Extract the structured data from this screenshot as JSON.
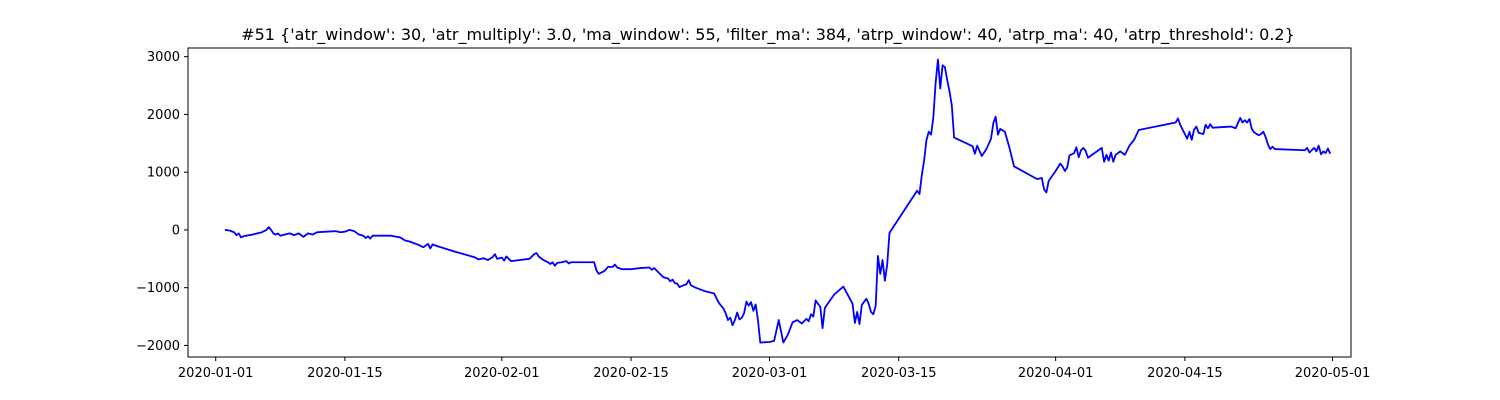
{
  "chart_data": {
    "type": "line",
    "title": "#51 {'atr_window': 30, 'atr_multiply': 3.0, 'ma_window': 55, 'filter_ma': 384, 'atrp_window': 40, 'atrp_ma': 40, 'atrp_threshold': 0.2}",
    "xlabel": "",
    "ylabel": "",
    "x_is_date": true,
    "xlim": [
      "2019-12-29",
      "2020-05-03"
    ],
    "ylim": [
      -2200,
      3150
    ],
    "x_ticks": [
      "2020-01-01",
      "2020-01-15",
      "2020-02-01",
      "2020-02-15",
      "2020-03-01",
      "2020-03-15",
      "2020-04-01",
      "2020-04-15",
      "2020-05-01"
    ],
    "y_ticks": [
      -2000,
      -1000,
      0,
      1000,
      2000,
      3000
    ],
    "grid": false,
    "series": [
      {
        "color": "#0000ff",
        "points": [
          [
            "2020-01-02",
            0
          ],
          [
            "2020-01-02 12:00",
            -10
          ],
          [
            "2020-01-03",
            -40
          ],
          [
            "2020-01-03 06:00",
            -90
          ],
          [
            "2020-01-03 12:00",
            -60
          ],
          [
            "2020-01-03 18:00",
            -130
          ],
          [
            "2020-01-04",
            -110
          ],
          [
            "2020-01-05",
            -80
          ],
          [
            "2020-01-06",
            -40
          ],
          [
            "2020-01-06 12:00",
            0
          ],
          [
            "2020-01-06 18:00",
            50
          ],
          [
            "2020-01-07",
            0
          ],
          [
            "2020-01-07 06:00",
            -60
          ],
          [
            "2020-01-07 12:00",
            -80
          ],
          [
            "2020-01-07 18:00",
            -60
          ],
          [
            "2020-01-08",
            -100
          ],
          [
            "2020-01-08 12:00",
            -80
          ],
          [
            "2020-01-09",
            -60
          ],
          [
            "2020-01-09 12:00",
            -90
          ],
          [
            "2020-01-10",
            -60
          ],
          [
            "2020-01-10 12:00",
            -120
          ],
          [
            "2020-01-11",
            -60
          ],
          [
            "2020-01-11 12:00",
            -80
          ],
          [
            "2020-01-12",
            -40
          ],
          [
            "2020-01-13",
            -30
          ],
          [
            "2020-01-14",
            -20
          ],
          [
            "2020-01-14 12:00",
            -40
          ],
          [
            "2020-01-15",
            -30
          ],
          [
            "2020-01-15 12:00",
            0
          ],
          [
            "2020-01-16",
            -20
          ],
          [
            "2020-01-16 12:00",
            -80
          ],
          [
            "2020-01-17",
            -100
          ],
          [
            "2020-01-17 06:00",
            -140
          ],
          [
            "2020-01-17 12:00",
            -110
          ],
          [
            "2020-01-17 18:00",
            -150
          ],
          [
            "2020-01-18",
            -100
          ],
          [
            "2020-01-20",
            -100
          ],
          [
            "2020-01-21",
            -130
          ],
          [
            "2020-01-21 12:00",
            -180
          ],
          [
            "2020-01-22",
            -200
          ],
          [
            "2020-01-22 12:00",
            -230
          ],
          [
            "2020-01-23",
            -260
          ],
          [
            "2020-01-23 12:00",
            -300
          ],
          [
            "2020-01-24",
            -240
          ],
          [
            "2020-01-24 06:00",
            -320
          ],
          [
            "2020-01-24 12:00",
            -250
          ],
          [
            "2020-01-25",
            -280
          ],
          [
            "2020-01-27",
            -380
          ],
          [
            "2020-01-29",
            -470
          ],
          [
            "2020-01-29 12:00",
            -510
          ],
          [
            "2020-01-30",
            -490
          ],
          [
            "2020-01-30 12:00",
            -520
          ],
          [
            "2020-01-31",
            -470
          ],
          [
            "2020-01-31 06:00",
            -420
          ],
          [
            "2020-01-31 12:00",
            -500
          ],
          [
            "2020-02-01",
            -480
          ],
          [
            "2020-02-01 06:00",
            -530
          ],
          [
            "2020-02-01 12:00",
            -460
          ],
          [
            "2020-02-02",
            -540
          ],
          [
            "2020-02-04",
            -500
          ],
          [
            "2020-02-04 12:00",
            -420
          ],
          [
            "2020-02-04 18:00",
            -400
          ],
          [
            "2020-02-05",
            -460
          ],
          [
            "2020-02-05 06:00",
            -490
          ],
          [
            "2020-02-05 12:00",
            -520
          ],
          [
            "2020-02-06",
            -560
          ],
          [
            "2020-02-06 06:00",
            -590
          ],
          [
            "2020-02-06 12:00",
            -560
          ],
          [
            "2020-02-06 18:00",
            -620
          ],
          [
            "2020-02-07",
            -570
          ],
          [
            "2020-02-07 12:00",
            -560
          ],
          [
            "2020-02-08",
            -540
          ],
          [
            "2020-02-08 06:00",
            -580
          ],
          [
            "2020-02-08 12:00",
            -560
          ],
          [
            "2020-02-11",
            -560
          ],
          [
            "2020-02-11 06:00",
            -700
          ],
          [
            "2020-02-11 12:00",
            -760
          ],
          [
            "2020-02-12",
            -720
          ],
          [
            "2020-02-12 06:00",
            -690
          ],
          [
            "2020-02-12 12:00",
            -640
          ],
          [
            "2020-02-13",
            -640
          ],
          [
            "2020-02-13 06:00",
            -600
          ],
          [
            "2020-02-13 12:00",
            -650
          ],
          [
            "2020-02-14",
            -680
          ],
          [
            "2020-02-15",
            -680
          ],
          [
            "2020-02-16",
            -660
          ],
          [
            "2020-02-17",
            -650
          ],
          [
            "2020-02-17 06:00",
            -690
          ],
          [
            "2020-02-17 12:00",
            -660
          ],
          [
            "2020-02-18",
            -740
          ],
          [
            "2020-02-18 12:00",
            -820
          ],
          [
            "2020-02-19",
            -840
          ],
          [
            "2020-02-19 06:00",
            -890
          ],
          [
            "2020-02-19 12:00",
            -860
          ],
          [
            "2020-02-19 18:00",
            -920
          ],
          [
            "2020-02-20",
            -930
          ],
          [
            "2020-02-20 06:00",
            -990
          ],
          [
            "2020-02-20 12:00",
            -970
          ],
          [
            "2020-02-21",
            -940
          ],
          [
            "2020-02-21 06:00",
            -870
          ],
          [
            "2020-02-21 12:00",
            -960
          ],
          [
            "2020-02-22",
            -1000
          ],
          [
            "2020-02-23",
            -1060
          ],
          [
            "2020-02-24",
            -1100
          ],
          [
            "2020-02-24 12:00",
            -1260
          ],
          [
            "2020-02-25",
            -1360
          ],
          [
            "2020-02-25 06:00",
            -1440
          ],
          [
            "2020-02-25 12:00",
            -1560
          ],
          [
            "2020-02-25 18:00",
            -1520
          ],
          [
            "2020-02-26",
            -1650
          ],
          [
            "2020-02-26 06:00",
            -1560
          ],
          [
            "2020-02-26 12:00",
            -1430
          ],
          [
            "2020-02-26 18:00",
            -1550
          ],
          [
            "2020-02-27",
            -1520
          ],
          [
            "2020-02-27 06:00",
            -1440
          ],
          [
            "2020-02-27 12:00",
            -1240
          ],
          [
            "2020-02-27 18:00",
            -1310
          ],
          [
            "2020-02-28",
            -1250
          ],
          [
            "2020-02-28 06:00",
            -1400
          ],
          [
            "2020-02-28 12:00",
            -1290
          ],
          [
            "2020-02-28 18:00",
            -1560
          ],
          [
            "2020-02-29",
            -1950
          ],
          [
            "2020-03-01",
            -1940
          ],
          [
            "2020-03-01 12:00",
            -1920
          ],
          [
            "2020-03-02",
            -1560
          ],
          [
            "2020-03-02 12:00",
            -1950
          ],
          [
            "2020-03-03",
            -1810
          ],
          [
            "2020-03-03 12:00",
            -1600
          ],
          [
            "2020-03-04",
            -1560
          ],
          [
            "2020-03-04 12:00",
            -1620
          ],
          [
            "2020-03-05",
            -1540
          ],
          [
            "2020-03-05 06:00",
            -1580
          ],
          [
            "2020-03-05 12:00",
            -1460
          ],
          [
            "2020-03-05 18:00",
            -1500
          ],
          [
            "2020-03-06",
            -1220
          ],
          [
            "2020-03-06 06:00",
            -1280
          ],
          [
            "2020-03-06 12:00",
            -1330
          ],
          [
            "2020-03-06 18:00",
            -1700
          ],
          [
            "2020-03-07",
            -1350
          ],
          [
            "2020-03-08",
            -1120
          ],
          [
            "2020-03-09",
            -980
          ],
          [
            "2020-03-10",
            -1280
          ],
          [
            "2020-03-10 06:00",
            -1610
          ],
          [
            "2020-03-10 12:00",
            -1420
          ],
          [
            "2020-03-10 18:00",
            -1630
          ],
          [
            "2020-03-11",
            -1300
          ],
          [
            "2020-03-11 12:00",
            -1190
          ],
          [
            "2020-03-11 18:00",
            -1280
          ],
          [
            "2020-03-12",
            -1420
          ],
          [
            "2020-03-12 06:00",
            -1460
          ],
          [
            "2020-03-12 12:00",
            -1320
          ],
          [
            "2020-03-12 18:00",
            -450
          ],
          [
            "2020-03-13",
            -760
          ],
          [
            "2020-03-13 06:00",
            -520
          ],
          [
            "2020-03-13 12:00",
            -880
          ],
          [
            "2020-03-13 18:00",
            -600
          ],
          [
            "2020-03-14",
            -50
          ],
          [
            "2020-03-17",
            680
          ],
          [
            "2020-03-17 06:00",
            620
          ],
          [
            "2020-03-17 12:00",
            950
          ],
          [
            "2020-03-17 18:00",
            1200
          ],
          [
            "2020-03-18",
            1550
          ],
          [
            "2020-03-18 06:00",
            1700
          ],
          [
            "2020-03-18 12:00",
            1650
          ],
          [
            "2020-03-18 18:00",
            1950
          ],
          [
            "2020-03-19",
            2550
          ],
          [
            "2020-03-19 06:00",
            2950
          ],
          [
            "2020-03-19 12:00",
            2450
          ],
          [
            "2020-03-19 18:00",
            2850
          ],
          [
            "2020-03-20",
            2820
          ],
          [
            "2020-03-20 06:00",
            2600
          ],
          [
            "2020-03-20 12:00",
            2400
          ],
          [
            "2020-03-20 18:00",
            2160
          ],
          [
            "2020-03-21",
            1600
          ],
          [
            "2020-03-23",
            1450
          ],
          [
            "2020-03-23 06:00",
            1320
          ],
          [
            "2020-03-23 12:00",
            1460
          ],
          [
            "2020-03-24",
            1280
          ],
          [
            "2020-03-24 12:00",
            1400
          ],
          [
            "2020-03-25",
            1580
          ],
          [
            "2020-03-25 06:00",
            1850
          ],
          [
            "2020-03-25 12:00",
            1960
          ],
          [
            "2020-03-25 18:00",
            1650
          ],
          [
            "2020-03-26",
            1750
          ],
          [
            "2020-03-26 12:00",
            1700
          ],
          [
            "2020-03-27",
            1420
          ],
          [
            "2020-03-27 12:00",
            1100
          ],
          [
            "2020-03-30",
            880
          ],
          [
            "2020-03-30 12:00",
            900
          ],
          [
            "2020-03-30 18:00",
            700
          ],
          [
            "2020-03-31",
            650
          ],
          [
            "2020-03-31 06:00",
            850
          ],
          [
            "2020-04-01",
            1020
          ],
          [
            "2020-04-01 12:00",
            1150
          ],
          [
            "2020-04-01 18:00",
            1100
          ],
          [
            "2020-04-02",
            1020
          ],
          [
            "2020-04-02 06:00",
            1080
          ],
          [
            "2020-04-02 12:00",
            1290
          ],
          [
            "2020-04-03",
            1330
          ],
          [
            "2020-04-03 06:00",
            1430
          ],
          [
            "2020-04-03 12:00",
            1260
          ],
          [
            "2020-04-03 18:00",
            1380
          ],
          [
            "2020-04-04",
            1420
          ],
          [
            "2020-04-04 06:00",
            1370
          ],
          [
            "2020-04-04 12:00",
            1250
          ],
          [
            "2020-04-06",
            1420
          ],
          [
            "2020-04-06 06:00",
            1180
          ],
          [
            "2020-04-06 12:00",
            1300
          ],
          [
            "2020-04-06 18:00",
            1200
          ],
          [
            "2020-04-07",
            1340
          ],
          [
            "2020-04-07 06:00",
            1180
          ],
          [
            "2020-04-07 12:00",
            1300
          ],
          [
            "2020-04-08",
            1360
          ],
          [
            "2020-04-08 12:00",
            1300
          ],
          [
            "2020-04-09",
            1460
          ],
          [
            "2020-04-09 12:00",
            1560
          ],
          [
            "2020-04-10",
            1730
          ],
          [
            "2020-04-14",
            1860
          ],
          [
            "2020-04-14 06:00",
            1930
          ],
          [
            "2020-04-14 12:00",
            1820
          ],
          [
            "2020-04-15",
            1660
          ],
          [
            "2020-04-15 06:00",
            1580
          ],
          [
            "2020-04-15 12:00",
            1700
          ],
          [
            "2020-04-15 18:00",
            1560
          ],
          [
            "2020-04-16",
            1740
          ],
          [
            "2020-04-16 06:00",
            1790
          ],
          [
            "2020-04-16 12:00",
            1680
          ],
          [
            "2020-04-17",
            1660
          ],
          [
            "2020-04-17 06:00",
            1820
          ],
          [
            "2020-04-17 12:00",
            1760
          ],
          [
            "2020-04-17 18:00",
            1830
          ],
          [
            "2020-04-18",
            1770
          ],
          [
            "2020-04-20",
            1790
          ],
          [
            "2020-04-20 12:00",
            1760
          ],
          [
            "2020-04-21",
            1940
          ],
          [
            "2020-04-21 06:00",
            1860
          ],
          [
            "2020-04-21 12:00",
            1900
          ],
          [
            "2020-04-21 18:00",
            1860
          ],
          [
            "2020-04-22",
            1920
          ],
          [
            "2020-04-22 06:00",
            1750
          ],
          [
            "2020-04-22 12:00",
            1690
          ],
          [
            "2020-04-23",
            1640
          ],
          [
            "2020-04-23 06:00",
            1660
          ],
          [
            "2020-04-23 12:00",
            1700
          ],
          [
            "2020-04-23 18:00",
            1610
          ],
          [
            "2020-04-24",
            1480
          ],
          [
            "2020-04-24 06:00",
            1400
          ],
          [
            "2020-04-24 12:00",
            1440
          ],
          [
            "2020-04-24 18:00",
            1400
          ],
          [
            "2020-04-28",
            1380
          ],
          [
            "2020-04-28 06:00",
            1420
          ],
          [
            "2020-04-28 12:00",
            1340
          ],
          [
            "2020-04-29",
            1420
          ],
          [
            "2020-04-29 06:00",
            1360
          ],
          [
            "2020-04-29 12:00",
            1460
          ],
          [
            "2020-04-29 18:00",
            1310
          ],
          [
            "2020-04-30",
            1360
          ],
          [
            "2020-04-30 06:00",
            1330
          ],
          [
            "2020-04-30 12:00",
            1410
          ],
          [
            "2020-04-30 18:00",
            1320
          ]
        ]
      }
    ]
  }
}
